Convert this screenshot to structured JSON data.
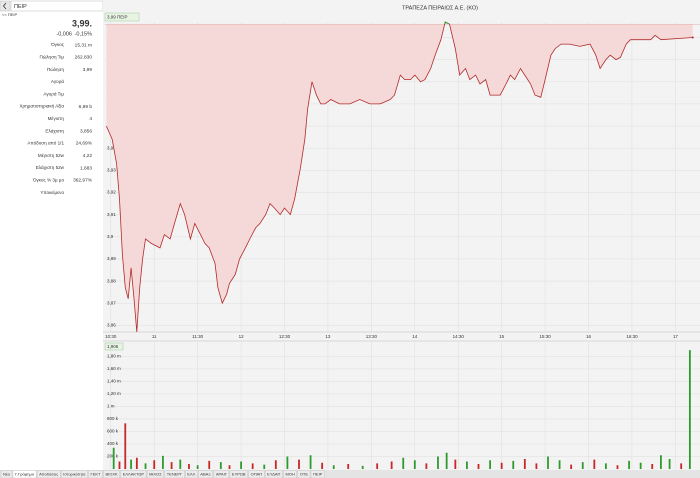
{
  "search": {
    "query": "ΠΕΙΡ",
    "breadcrumb": "<< ΠΕΙΡ"
  },
  "quote": {
    "price": "3,99.",
    "change": "-0,006",
    "change_pct": "-0,15%",
    "change_color": "#d23030",
    "rows": [
      {
        "label": "Όγκος",
        "value": "15,31 m",
        "color": "#d23030"
      },
      {
        "label": "Πώληση Τιμ",
        "value": "262.830"
      },
      {
        "label": "Πώληση",
        "value": "3,99"
      },
      {
        "label": "Αγορά"
      },
      {
        "label": "Αγορά Τιμ"
      },
      {
        "label": "Χρηματιστηριακή Αξία",
        "value": "6,99 b"
      },
      {
        "label": "Μέγιστη",
        "value": "4"
      },
      {
        "label": "Ελάχιστη",
        "value": "3,856"
      },
      {
        "label": "Απόδοση από 1/1",
        "value": "24,69%",
        "color": "#2e8b2e"
      },
      {
        "label": "Μέγιστη 52w",
        "value": "4,22"
      },
      {
        "label": "Ελάχιστη 52w",
        "value": "1,683"
      },
      {
        "label": "Όγκος % 3μ μο",
        "value": "362,97%"
      },
      {
        "label": "Υποκείμενο"
      }
    ]
  },
  "tabs": [
    "Νέα",
    "Γ.Γράφημα",
    "Αποδόσεις",
    "Ιστορικότητα",
    "ΓΕΚΤ",
    "ΒΙΟΧΚ",
    "ΕΛΛΑΚΤΩΡ",
    "ΜΙΛΟΣ",
    "ΤΕΝΕΡΓ",
    "ΕΛΛ",
    "ΑΒΑΞ",
    "ΑΡΑΙΓ",
    "ΕΥΡΩΒ",
    "ΟΠΑΠ",
    "ΕΥΔΑΠ",
    "ΜΟΗ",
    "ΟΤΕ",
    "ΠΕΙΡ"
  ],
  "active_tab": 1,
  "chart_data": [
    {
      "type": "line",
      "title": "ΤΡΑΠΕΖΑ ΠΕΙΡΑΙΩΣ Α.Ε. (ΚΟ)",
      "x": [
        627,
        631,
        634,
        636,
        638,
        640,
        642,
        644,
        646,
        648,
        650,
        652,
        654,
        658,
        664,
        667,
        671,
        674,
        678,
        681,
        685,
        688,
        692,
        695,
        698,
        702,
        704,
        707,
        710,
        712,
        716,
        719,
        723,
        726,
        730,
        733,
        737,
        740,
        743,
        747,
        750,
        754,
        757,
        761,
        764,
        766,
        769,
        772,
        775,
        778,
        782,
        788,
        795,
        802,
        809,
        816,
        823,
        826,
        830,
        833,
        837,
        840,
        844,
        847,
        851,
        854,
        858,
        861,
        864,
        868,
        871,
        875,
        878,
        882,
        885,
        889,
        892,
        899,
        903,
        906,
        909,
        913,
        916,
        920,
        923,
        927,
        930,
        934,
        937,
        941,
        947,
        954,
        961,
        965,
        968,
        972,
        975,
        979,
        982,
        986,
        989,
        1003,
        1006,
        1010,
        1032
      ],
      "series": [
        {
          "name": "3,99 ΠΕΙΡ",
          "color": "#b22a2a",
          "values": [
            3.95,
            3.944,
            3.933,
            3.917,
            3.892,
            3.877,
            3.872,
            3.886,
            3.872,
            3.857,
            3.877,
            3.89,
            3.899,
            3.897,
            3.895,
            3.901,
            3.899,
            3.906,
            3.915,
            3.91,
            3.899,
            3.906,
            3.901,
            3.897,
            3.895,
            3.888,
            3.877,
            3.87,
            3.874,
            3.879,
            3.883,
            3.89,
            3.895,
            3.899,
            3.904,
            3.906,
            3.91,
            3.915,
            3.913,
            3.91,
            3.913,
            3.91,
            3.917,
            3.931,
            3.944,
            3.958,
            3.97,
            3.964,
            3.96,
            3.96,
            3.962,
            3.96,
            3.96,
            3.962,
            3.96,
            3.96,
            3.962,
            3.964,
            3.973,
            3.971,
            3.971,
            3.973,
            3.97,
            3.971,
            3.976,
            3.982,
            3.989,
            3.997,
            3.996,
            3.985,
            3.973,
            3.976,
            3.971,
            3.973,
            3.969,
            3.971,
            3.964,
            3.964,
            3.969,
            3.973,
            3.971,
            3.976,
            3.973,
            3.969,
            3.964,
            3.963,
            3.971,
            3.982,
            3.985,
            3.987,
            3.987,
            3.986,
            3.987,
            3.982,
            3.976,
            3.98,
            3.982,
            3.98,
            3.981,
            3.987,
            3.989,
            3.989,
            3.991,
            3.989,
            3.99
          ]
        }
      ],
      "reference": 3.996,
      "below_fill": "#f5d8d8",
      "above_fill": "#cfe8c9",
      "above_color": "#2e9a2e",
      "xlim": [
        626,
        1037
      ],
      "ylim": [
        3.857,
        3.997
      ],
      "xticks": [
        {
          "value": 630,
          "label": "10:30"
        },
        {
          "value": 660,
          "label": "11"
        },
        {
          "value": 690,
          "label": "11:30"
        },
        {
          "value": 720,
          "label": "12"
        },
        {
          "value": 750,
          "label": "12:30"
        },
        {
          "value": 780,
          "label": "13"
        },
        {
          "value": 810,
          "label": "13:30"
        },
        {
          "value": 840,
          "label": "14"
        },
        {
          "value": 870,
          "label": "14:30"
        },
        {
          "value": 900,
          "label": "15"
        },
        {
          "value": 930,
          "label": "15:30"
        },
        {
          "value": 960,
          "label": "16"
        },
        {
          "value": 990,
          "label": "16:30"
        },
        {
          "value": 1020,
          "label": "17"
        }
      ],
      "yticks": [
        {
          "value": 3.86,
          "label": "3,86"
        },
        {
          "value": 3.87,
          "label": "3,87"
        },
        {
          "value": 3.88,
          "label": "3,88"
        },
        {
          "value": 3.89,
          "label": "3,89"
        },
        {
          "value": 3.9,
          "label": "3,9"
        },
        {
          "value": 3.91,
          "label": "3,91"
        },
        {
          "value": 3.92,
          "label": "3,92"
        },
        {
          "value": 3.93,
          "label": "3,93"
        },
        {
          "value": 3.94,
          "label": "3,94"
        },
        {
          "value": 3.95,
          "label": "3,95"
        },
        {
          "value": 3.96,
          "label": "3,96"
        },
        {
          "value": 3.97,
          "label": "3,97"
        },
        {
          "value": 3.98,
          "label": "3,98"
        },
        {
          "value": 3.99,
          "label": "3,99"
        }
      ],
      "grid": true
    },
    {
      "type": "bar",
      "legend_label": "1,906",
      "x": [
        632,
        636,
        640,
        644,
        648,
        654,
        660,
        666,
        672,
        678,
        684,
        690,
        698,
        706,
        712,
        720,
        728,
        736,
        744,
        752,
        760,
        768,
        776,
        784,
        794,
        804,
        814,
        824,
        832,
        840,
        848,
        856,
        862,
        868,
        876,
        884,
        892,
        900,
        908,
        916,
        924,
        932,
        940,
        948,
        956,
        964,
        972,
        980,
        988,
        996,
        1004,
        1010,
        1016,
        1024,
        1030
      ],
      "values": [
        340000,
        120000,
        730000,
        150000,
        180000,
        90000,
        140000,
        210000,
        110000,
        150000,
        80000,
        60000,
        130000,
        110000,
        60000,
        120000,
        90000,
        70000,
        140000,
        200000,
        150000,
        220000,
        100000,
        60000,
        80000,
        50000,
        90000,
        120000,
        180000,
        140000,
        90000,
        200000,
        260000,
        150000,
        120000,
        80000,
        140000,
        100000,
        130000,
        160000,
        90000,
        200000,
        140000,
        70000,
        110000,
        150000,
        90000,
        60000,
        130000,
        100000,
        80000,
        220000,
        160000,
        90000,
        1900000
      ],
      "colors": [
        "#2e9a2e",
        "#c62828",
        "#c62828",
        "#2e9a2e",
        "#c62828",
        "#2e9a2e",
        "#c62828",
        "#2e9a2e",
        "#c62828",
        "#2e9a2e",
        "#c62828",
        "#2e9a2e",
        "#c62828",
        "#2e9a2e",
        "#c62828",
        "#2e9a2e",
        "#c62828",
        "#2e9a2e",
        "#c62828",
        "#2e9a2e",
        "#c62828",
        "#2e9a2e",
        "#c62828",
        "#2e9a2e",
        "#c62828",
        "#2e9a2e",
        "#c62828",
        "#c62828",
        "#2e9a2e",
        "#2e9a2e",
        "#c62828",
        "#2e9a2e",
        "#2e9a2e",
        "#c62828",
        "#2e9a2e",
        "#c62828",
        "#2e9a2e",
        "#c62828",
        "#2e9a2e",
        "#c62828",
        "#c62828",
        "#2e9a2e",
        "#2e9a2e",
        "#c62828",
        "#2e9a2e",
        "#c62828",
        "#2e9a2e",
        "#c62828",
        "#2e9a2e",
        "#2e9a2e",
        "#c62828",
        "#2e9a2e",
        "#2e9a2e",
        "#c62828",
        "#2e9a2e"
      ],
      "xlim": [
        626,
        1037
      ],
      "ylim": [
        0,
        2030000
      ],
      "yticks": [
        {
          "value": 200000,
          "label": "200 k"
        },
        {
          "value": 400000,
          "label": "400 k"
        },
        {
          "value": 600000,
          "label": "600 k"
        },
        {
          "value": 800000,
          "label": "800 k"
        },
        {
          "value": 1000000,
          "label": "1 m"
        },
        {
          "value": 1200000,
          "label": "1,20 m"
        },
        {
          "value": 1400000,
          "label": "1,40 m"
        },
        {
          "value": 1600000,
          "label": "1,60 m"
        },
        {
          "value": 1800000,
          "label": "1,80 m"
        }
      ],
      "grid": true
    }
  ]
}
